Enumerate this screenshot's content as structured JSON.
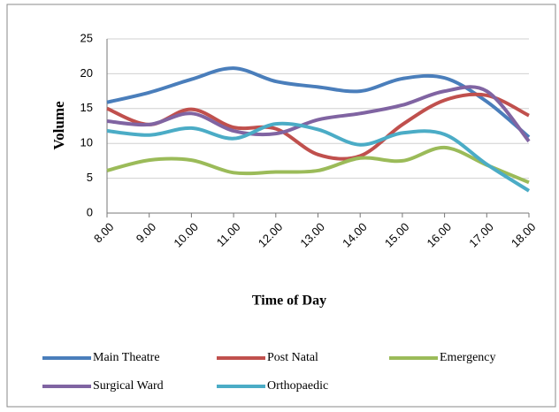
{
  "chart_data": {
    "type": "line",
    "smooth": true,
    "x_label": "Time of Day",
    "y_label": "Volume",
    "categories": [
      "8.00",
      "9.00",
      "10.00",
      "11.00",
      "12.00",
      "13.00",
      "14.00",
      "15.00",
      "16.00",
      "17.00",
      "18.00"
    ],
    "series": [
      {
        "name": "Main Theatre",
        "color": "#4a7ebb",
        "values": [
          15.9,
          17.3,
          19.2,
          20.8,
          18.9,
          18.1,
          17.5,
          19.3,
          19.4,
          16,
          10.9
        ]
      },
      {
        "name": "Post Natal",
        "color": "#c0504d",
        "values": [
          15,
          12.7,
          14.9,
          12.3,
          12.1,
          8.4,
          8.2,
          12.7,
          16.2,
          16.9,
          14
        ]
      },
      {
        "name": "Emergency",
        "color": "#9bbb59",
        "values": [
          6.1,
          7.6,
          7.6,
          5.8,
          5.9,
          6.1,
          7.9,
          7.5,
          9.4,
          6.9,
          4.4
        ]
      },
      {
        "name": "Surgical Ward",
        "color": "#8064a2",
        "values": [
          13.2,
          12.7,
          14.3,
          11.8,
          11.4,
          13.4,
          14.3,
          15.5,
          17.5,
          17.5,
          10.3
        ]
      },
      {
        "name": "Orthopaedic",
        "color": "#4bacc6",
        "values": [
          11.8,
          11.2,
          12.2,
          10.7,
          12.8,
          12,
          9.8,
          11.5,
          11.3,
          7,
          3.2
        ]
      }
    ],
    "ylim": [
      0,
      25
    ],
    "yticks": [
      0,
      5,
      10,
      15,
      20,
      25
    ],
    "grid": true,
    "legend": "bottom"
  }
}
